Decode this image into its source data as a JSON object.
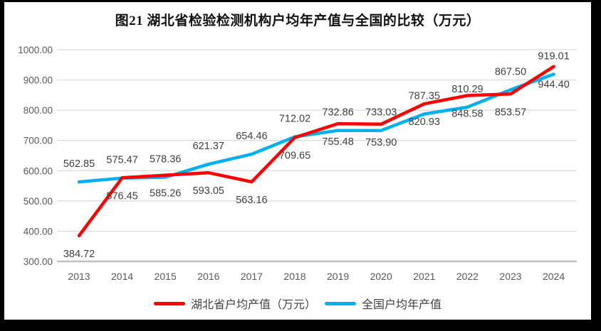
{
  "title": "图21 湖北省检验检测机构户均年产值与全国的比较（万元）",
  "chart_data": {
    "type": "line",
    "categories": [
      "2013",
      "2014",
      "2015",
      "2016",
      "2017",
      "2018",
      "2019",
      "2020",
      "2021",
      "2022",
      "2023",
      "2024"
    ],
    "series": [
      {
        "key": "national",
        "name": "全国户均年产值",
        "color": "#00B0F0",
        "label_position": "above",
        "values": [
          562.85,
          575.47,
          578.36,
          621.37,
          654.46,
          712.02,
          732.86,
          733.03,
          787.35,
          810.29,
          867.5,
          919.01
        ]
      },
      {
        "key": "hubei",
        "name": "湖北省户均产值（万元）",
        "color": "#FF0000",
        "label_position": "below",
        "values": [
          384.72,
          576.45,
          585.26,
          593.05,
          563.16,
          709.65,
          755.48,
          753.9,
          820.93,
          848.58,
          853.57,
          944.4
        ]
      }
    ],
    "legend_order": [
      "hubei",
      "national"
    ],
    "ylim": [
      300,
      1000
    ],
    "ytick_step": 100,
    "ytick_labels": [
      "300.00",
      "400.00",
      "500.00",
      "600.00",
      "700.00",
      "800.00",
      "900.00",
      "1000.00"
    ],
    "xlabel": "",
    "ylabel": "",
    "grid": true,
    "legend_position": "bottom",
    "label_decimals": 2,
    "colors": {
      "grid": "#D9D9D9",
      "axis": "#BFBFBF",
      "tick_label": "#595959",
      "data_label": "#404040",
      "frame": "#000000"
    }
  }
}
